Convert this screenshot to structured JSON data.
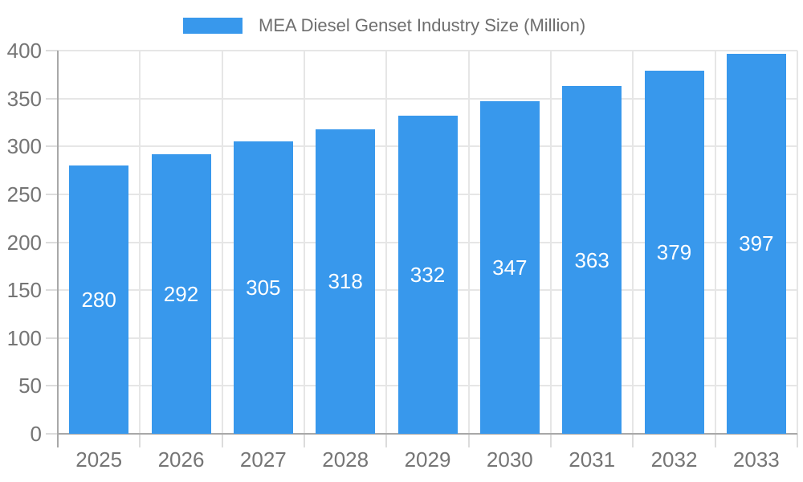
{
  "chart_data": {
    "type": "bar",
    "title": "MEA Diesel Genset Industry Size (Million)",
    "legend": [
      "MEA Diesel Genset Industry Size (Million)"
    ],
    "legend_position": "top",
    "categories": [
      "2025",
      "2026",
      "2027",
      "2028",
      "2029",
      "2030",
      "2031",
      "2032",
      "2033"
    ],
    "values": [
      280,
      292,
      305,
      318,
      332,
      347,
      363,
      379,
      397
    ],
    "xlabel": "",
    "ylabel": "",
    "ylim": [
      0,
      400
    ],
    "ytick_step": 50,
    "ytick_labels": [
      "0",
      "50",
      "100",
      "150",
      "200",
      "250",
      "300",
      "350",
      "400"
    ],
    "grid": true,
    "bar_labels_shown": true,
    "colors": {
      "bar": "#3898EC",
      "bar_label": "#FFFFFF",
      "gridline": "#E6E6E6",
      "tick_mark": "#DCDCDC",
      "axis_line": "#A8A8A8",
      "tick_text": "#757575",
      "legend_text": "#6E6E6E"
    }
  }
}
